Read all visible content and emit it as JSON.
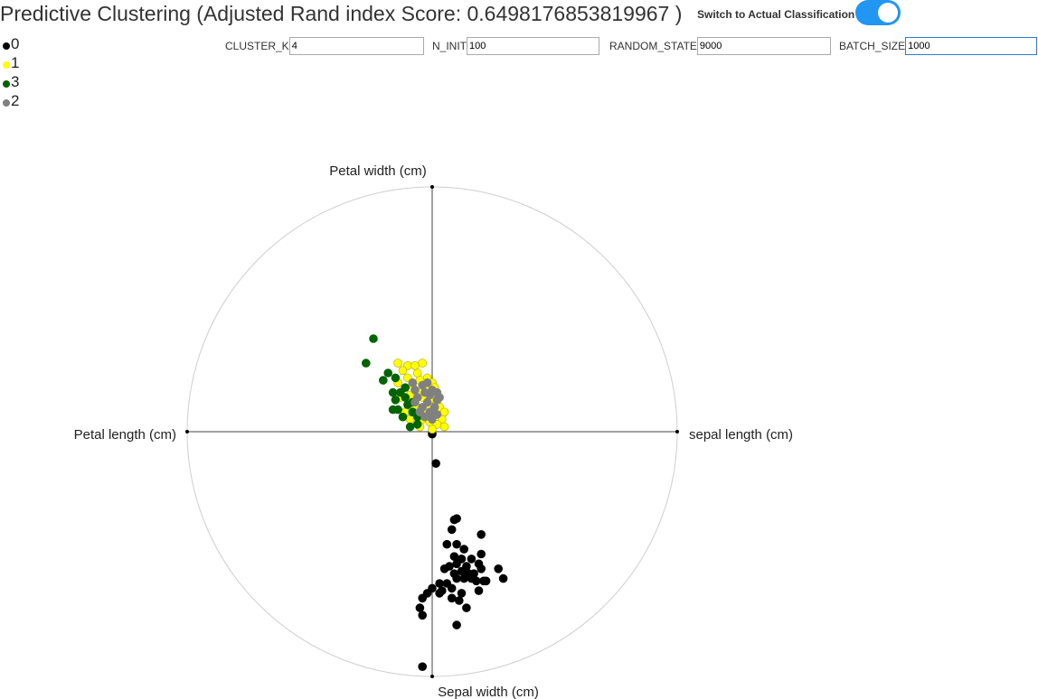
{
  "header": {
    "title": "Predictive Clustering (Adjusted Rand index Score: 0.6498176853819967 )",
    "toggle_label": "Switch to Actual Classification",
    "toggle_state": "on",
    "toggle_color": "#2196f3"
  },
  "legend": [
    {
      "label": "0",
      "color": "#000000"
    },
    {
      "label": "1",
      "color": "#ffff00"
    },
    {
      "label": "3",
      "color": "#006400"
    },
    {
      "label": "2",
      "color": "#808080"
    }
  ],
  "params": {
    "cluster_k": {
      "label": "CLUSTER_K",
      "value": "4"
    },
    "n_init": {
      "label": "N_INIT",
      "value": "100"
    },
    "random_state": {
      "label": "RANDOM_STATE",
      "value": "9000"
    },
    "batch_size": {
      "label": "BATCH_SIZE",
      "value": "1000"
    }
  },
  "chart_data": {
    "type": "scatter",
    "projection": "radviz",
    "anchors": {
      "top": "Petal width (cm)",
      "left": "Petal length (cm)",
      "right": "sepal length (cm)",
      "bottom": "Sepal width (cm)"
    },
    "xlim": [
      -1,
      1
    ],
    "ylim": [
      -1,
      1
    ],
    "series": [
      {
        "name": "0",
        "color": "#000000",
        "points": [
          [
            0.0,
            -0.01
          ],
          [
            0.015,
            -0.13
          ],
          [
            0.09,
            -0.36
          ],
          [
            0.1,
            -0.355
          ],
          [
            0.2,
            -0.42
          ],
          [
            0.08,
            -0.4
          ],
          [
            0.06,
            -0.46
          ],
          [
            0.1,
            -0.46
          ],
          [
            0.13,
            -0.48
          ],
          [
            0.2,
            -0.5
          ],
          [
            0.09,
            -0.51
          ],
          [
            0.05,
            -0.56
          ],
          [
            0.12,
            -0.52
          ],
          [
            0.16,
            -0.52
          ],
          [
            0.19,
            -0.54
          ],
          [
            0.07,
            -0.55
          ],
          [
            0.1,
            -0.54
          ],
          [
            0.14,
            -0.55
          ],
          [
            0.15,
            -0.58
          ],
          [
            0.12,
            -0.57
          ],
          [
            0.09,
            -0.58
          ],
          [
            0.17,
            -0.58
          ],
          [
            0.2,
            -0.56
          ],
          [
            0.16,
            -0.6
          ],
          [
            0.27,
            -0.56
          ],
          [
            0.29,
            -0.6
          ],
          [
            0.22,
            -0.61
          ],
          [
            0.13,
            -0.6
          ],
          [
            0.1,
            -0.6
          ],
          [
            0.03,
            -0.62
          ],
          [
            0.04,
            -0.65
          ],
          [
            0.0,
            -0.64
          ],
          [
            -0.02,
            -0.66
          ],
          [
            0.03,
            -0.66
          ],
          [
            -0.04,
            -0.68
          ],
          [
            0.12,
            -0.66
          ],
          [
            0.08,
            -0.64
          ],
          [
            0.08,
            -0.68
          ],
          [
            0.11,
            -0.69
          ],
          [
            -0.05,
            -0.72
          ],
          [
            -0.04,
            -0.75
          ],
          [
            0.14,
            -0.72
          ],
          [
            0.1,
            -0.79
          ],
          [
            0.19,
            -0.65
          ],
          [
            0.21,
            -0.61
          ],
          [
            0.06,
            -0.62
          ],
          [
            0.18,
            -0.61
          ],
          [
            -0.04,
            -0.96
          ]
        ]
      },
      {
        "name": "1",
        "color": "#ffff00",
        "points": [
          [
            -0.14,
            0.28
          ],
          [
            -0.1,
            0.27
          ],
          [
            -0.04,
            0.28
          ],
          [
            -0.12,
            0.25
          ],
          [
            -0.06,
            0.24
          ],
          [
            -0.02,
            0.22
          ],
          [
            -0.1,
            0.22
          ],
          [
            0.0,
            0.2
          ],
          [
            -0.14,
            0.2
          ],
          [
            -0.08,
            0.19
          ],
          [
            -0.03,
            0.18
          ],
          [
            -0.05,
            0.16
          ],
          [
            -0.09,
            0.15
          ],
          [
            0.0,
            0.16
          ],
          [
            -0.13,
            0.14
          ],
          [
            -0.04,
            0.14
          ],
          [
            -0.01,
            0.13
          ],
          [
            0.02,
            0.12
          ],
          [
            0.03,
            0.1
          ],
          [
            0.05,
            0.08
          ],
          [
            -0.07,
            0.11
          ],
          [
            -0.02,
            0.09
          ],
          [
            0.0,
            0.07
          ],
          [
            0.04,
            0.05
          ],
          [
            -0.04,
            0.05
          ],
          [
            -0.01,
            0.04
          ],
          [
            0.02,
            0.03
          ],
          [
            0.05,
            0.02
          ],
          [
            0.0,
            0.01
          ],
          [
            -0.05,
            0.02
          ],
          [
            -0.09,
            0.05
          ],
          [
            -0.11,
            0.08
          ],
          [
            0.01,
            0.18
          ],
          [
            -0.05,
            0.21
          ],
          [
            -0.07,
            0.27
          ]
        ]
      },
      {
        "name": "3",
        "color": "#006400",
        "points": [
          [
            -0.24,
            0.38
          ],
          [
            -0.27,
            0.28
          ],
          [
            -0.18,
            0.24
          ],
          [
            -0.2,
            0.21
          ],
          [
            -0.15,
            0.22
          ],
          [
            -0.11,
            0.18
          ],
          [
            -0.16,
            0.16
          ],
          [
            -0.15,
            0.13
          ],
          [
            -0.14,
            0.09
          ],
          [
            -0.16,
            0.09
          ],
          [
            -0.1,
            0.11
          ],
          [
            -0.08,
            0.08
          ],
          [
            -0.12,
            0.06
          ],
          [
            -0.09,
            0.02
          ],
          [
            -0.06,
            0.06
          ],
          [
            -0.06,
            0.03
          ],
          [
            -0.08,
            0.12
          ],
          [
            -0.11,
            0.14
          ],
          [
            -0.13,
            0.16
          ]
        ]
      },
      {
        "name": "2",
        "color": "#808080",
        "points": [
          [
            -0.08,
            0.2
          ],
          [
            -0.04,
            0.19
          ],
          [
            0.0,
            0.17
          ],
          [
            0.02,
            0.16
          ],
          [
            -0.03,
            0.16
          ],
          [
            -0.07,
            0.17
          ],
          [
            -0.01,
            0.15
          ],
          [
            0.03,
            0.14
          ],
          [
            -0.06,
            0.14
          ],
          [
            -0.02,
            0.12
          ],
          [
            0.01,
            0.1
          ],
          [
            -0.04,
            0.1
          ],
          [
            -0.01,
            0.08
          ],
          [
            -0.05,
            0.08
          ],
          [
            0.02,
            0.07
          ],
          [
            -0.03,
            0.06
          ],
          [
            0.0,
            0.05
          ],
          [
            0.02,
            0.13
          ],
          [
            -0.07,
            0.12
          ],
          [
            -0.02,
            0.2
          ]
        ]
      }
    ]
  }
}
